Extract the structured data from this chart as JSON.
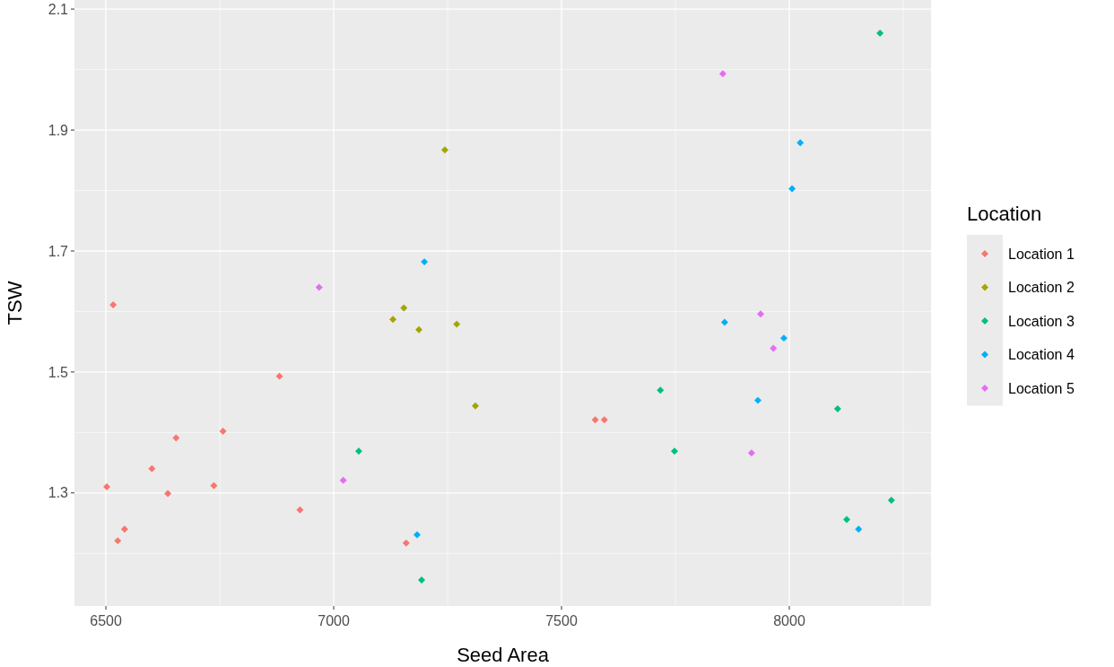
{
  "chart_data": {
    "type": "scatter",
    "xlabel": "Seed Area",
    "ylabel": "TSW",
    "legend_title": "Location",
    "legend": "right",
    "grid": true,
    "marker": "diamond",
    "xlim": [
      6431,
      8311
    ],
    "xticks": [
      6500,
      7000,
      7500,
      8000
    ],
    "ylim": [
      1.113,
      2.115
    ],
    "yticks": [
      1.3,
      1.5,
      1.7,
      1.9,
      2.1
    ],
    "series": [
      {
        "name": "Location 1",
        "color": "#f8766d",
        "x": [
          6516,
          6502,
          6526,
          6541,
          6601,
          6636,
          6654,
          6737,
          6757,
          6881,
          6926,
          7159,
          7574,
          7594
        ],
        "values": [
          1.611,
          1.31,
          1.221,
          1.24,
          1.34,
          1.299,
          1.391,
          1.312,
          1.402,
          1.493,
          1.272,
          1.217,
          1.421,
          1.421
        ]
      },
      {
        "name": "Location 2",
        "color": "#a3a500",
        "x": [
          7244,
          7130,
          7154,
          7187,
          7270,
          7311
        ],
        "values": [
          1.867,
          1.587,
          1.606,
          1.57,
          1.579,
          1.444
        ]
      },
      {
        "name": "Location 3",
        "color": "#00bf7d",
        "x": [
          8199,
          7055,
          7193,
          7717,
          7748,
          8106,
          8126,
          8224
        ],
        "values": [
          2.06,
          1.369,
          1.156,
          1.47,
          1.369,
          1.439,
          1.256,
          1.288
        ]
      },
      {
        "name": "Location 4",
        "color": "#00b0f6",
        "x": [
          7199,
          7183,
          7858,
          7931,
          7988,
          8006,
          8024,
          8152
        ],
        "values": [
          1.682,
          1.231,
          1.582,
          1.453,
          1.556,
          1.803,
          1.879,
          1.24
        ]
      },
      {
        "name": "Location 5",
        "color": "#e76bf3",
        "x": [
          7854,
          6968,
          7021,
          7937,
          7965,
          7917
        ],
        "values": [
          1.993,
          1.64,
          1.321,
          1.596,
          1.539,
          1.366
        ]
      }
    ]
  }
}
